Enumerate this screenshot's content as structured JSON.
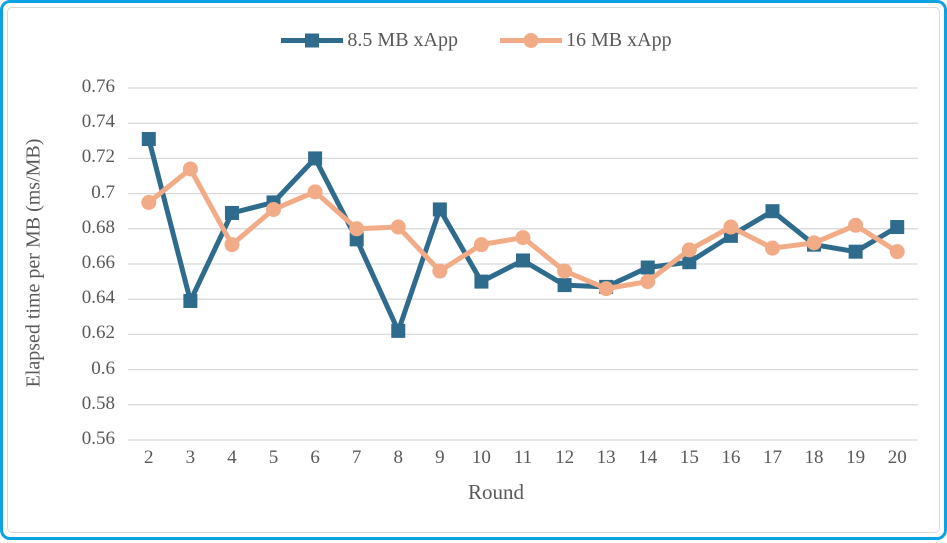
{
  "frame": {
    "outer_border_color": "#0aa2e2",
    "inner_border_color": "#d9d9d9",
    "background": "#ffffff"
  },
  "chart_data": {
    "type": "line",
    "title": "",
    "xlabel": "Round",
    "ylabel": "Elapsed time per MB (ms/MB)",
    "categories": [
      "2",
      "3",
      "4",
      "5",
      "6",
      "7",
      "8",
      "9",
      "10",
      "11",
      "12",
      "13",
      "14",
      "15",
      "16",
      "17",
      "18",
      "19",
      "20"
    ],
    "series": [
      {
        "name": "8.5 MB xApp",
        "color": "#2e6b8d",
        "marker": "square",
        "values": [
          0.731,
          0.639,
          0.689,
          0.695,
          0.72,
          0.674,
          0.622,
          0.691,
          0.65,
          0.662,
          0.648,
          0.647,
          0.658,
          0.661,
          0.676,
          0.69,
          0.671,
          0.667,
          0.681
        ]
      },
      {
        "name": "16 MB xApp",
        "color": "#f2ab87",
        "marker": "circle",
        "values": [
          0.695,
          0.714,
          0.671,
          0.691,
          0.701,
          0.68,
          0.681,
          0.656,
          0.671,
          0.675,
          0.656,
          0.646,
          0.65,
          0.668,
          0.681,
          0.669,
          0.672,
          0.682,
          0.667
        ]
      }
    ],
    "ylim": [
      0.56,
      0.76
    ],
    "ytick_labels": [
      "0.76",
      "0.74",
      "0.72",
      "0.7",
      "0.68",
      "0.66",
      "0.64",
      "0.62",
      "0.6",
      "0.58",
      "0.56"
    ],
    "grid": true,
    "legend_position": "top",
    "gridline_color": "#d9d9d9",
    "axis_text_color": "#595959"
  }
}
